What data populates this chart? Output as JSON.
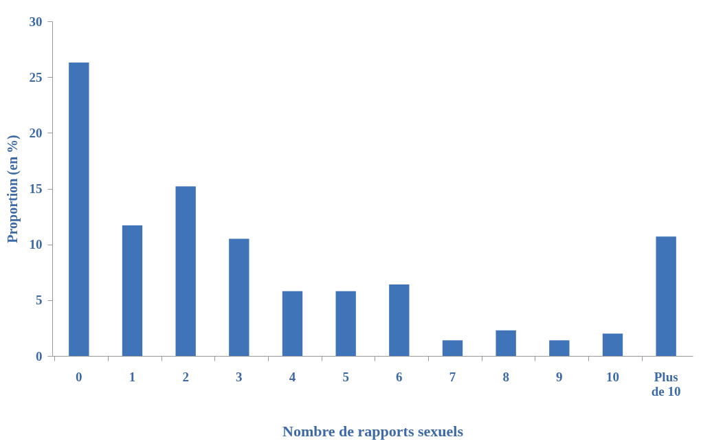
{
  "chart_data": {
    "type": "bar",
    "xlabel": "Nombre de rapports sexuels",
    "ylabel": "Proportion (en %)",
    "categories": [
      "0",
      "1",
      "2",
      "3",
      "4",
      "5",
      "6",
      "7",
      "8",
      "9",
      "10",
      "Plus de 10"
    ],
    "values": [
      26.3,
      11.7,
      15.2,
      10.5,
      5.8,
      5.8,
      6.4,
      1.4,
      2.3,
      1.4,
      2.0,
      10.7
    ],
    "color": "#3f75b8",
    "ylim": [
      0,
      30
    ],
    "yticks": [
      0,
      5,
      10,
      15,
      20,
      25,
      30
    ],
    "grid": false
  }
}
